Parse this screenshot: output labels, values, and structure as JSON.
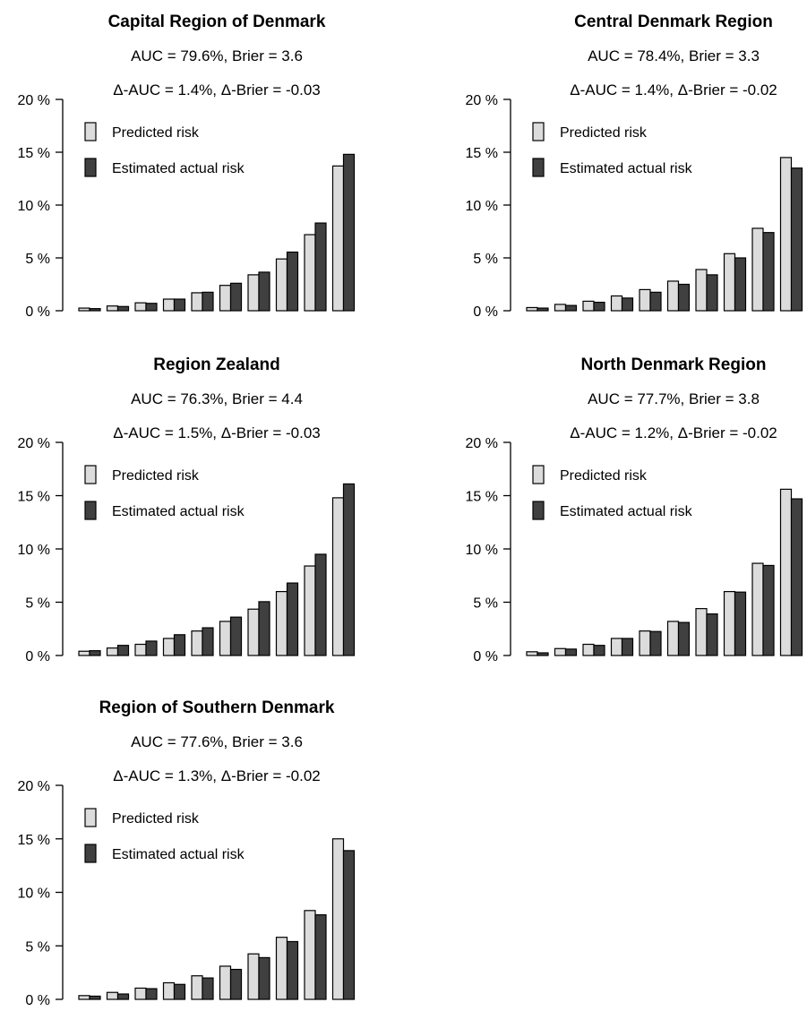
{
  "chart_data": [
    {
      "type": "bar",
      "title": "Capital Region of Denmark",
      "subtitle1": "AUC = 79.6%, Brier = 3.6",
      "subtitle2": "Δ-AUC = 1.4%, Δ-Brier = -0.03",
      "ylim": [
        0,
        20
      ],
      "yticks": [
        "0 %",
        "5 %",
        "10 %",
        "15 %",
        "20 %"
      ],
      "ytick_values": [
        0,
        5,
        10,
        15,
        20
      ],
      "legend_position": "top-left",
      "grid": false,
      "series": [
        {
          "name": "Predicted risk",
          "color": "#dcdcdc",
          "values": [
            0.25,
            0.45,
            0.75,
            1.1,
            1.7,
            2.4,
            3.4,
            4.9,
            7.2,
            13.7
          ]
        },
        {
          "name": "Estimated actual risk",
          "color": "#404040",
          "values": [
            0.2,
            0.4,
            0.7,
            1.1,
            1.75,
            2.6,
            3.65,
            5.55,
            8.3,
            14.8
          ]
        }
      ]
    },
    {
      "type": "bar",
      "title": "Central Denmark Region",
      "subtitle1": "AUC = 78.4%, Brier = 3.3",
      "subtitle2": "Δ-AUC = 1.4%, Δ-Brier = -0.02",
      "ylim": [
        0,
        20
      ],
      "yticks": [
        "0 %",
        "5 %",
        "10 %",
        "15 %",
        "20 %"
      ],
      "ytick_values": [
        0,
        5,
        10,
        15,
        20
      ],
      "legend_position": "top-left",
      "grid": false,
      "series": [
        {
          "name": "Predicted risk",
          "color": "#dcdcdc",
          "values": [
            0.3,
            0.6,
            0.9,
            1.4,
            2.0,
            2.8,
            3.9,
            5.4,
            7.8,
            14.5
          ]
        },
        {
          "name": "Estimated actual risk",
          "color": "#404040",
          "values": [
            0.25,
            0.5,
            0.8,
            1.2,
            1.75,
            2.5,
            3.4,
            5.0,
            7.4,
            13.5
          ]
        }
      ]
    },
    {
      "type": "bar",
      "title": "Region Zealand",
      "subtitle1": "AUC = 76.3%, Brier = 4.4",
      "subtitle2": "Δ-AUC = 1.5%, Δ-Brier = -0.03",
      "ylim": [
        0,
        20
      ],
      "yticks": [
        "0 %",
        "5 %",
        "10 %",
        "15 %",
        "20 %"
      ],
      "ytick_values": [
        0,
        5,
        10,
        15,
        20
      ],
      "legend_position": "top-left",
      "grid": false,
      "series": [
        {
          "name": "Predicted risk",
          "color": "#dcdcdc",
          "values": [
            0.4,
            0.7,
            1.05,
            1.6,
            2.3,
            3.2,
            4.35,
            6.0,
            8.4,
            14.8
          ]
        },
        {
          "name": "Estimated actual risk",
          "color": "#404040",
          "values": [
            0.45,
            0.95,
            1.35,
            1.95,
            2.6,
            3.6,
            5.05,
            6.8,
            9.5,
            16.1
          ]
        }
      ]
    },
    {
      "type": "bar",
      "title": "North Denmark Region",
      "subtitle1": "AUC = 77.7%, Brier = 3.8",
      "subtitle2": "Δ-AUC = 1.2%, Δ-Brier = -0.02",
      "ylim": [
        0,
        20
      ],
      "yticks": [
        "0 %",
        "5 %",
        "10 %",
        "15 %",
        "20 %"
      ],
      "ytick_values": [
        0,
        5,
        10,
        15,
        20
      ],
      "legend_position": "top-left",
      "grid": false,
      "series": [
        {
          "name": "Predicted risk",
          "color": "#dcdcdc",
          "values": [
            0.35,
            0.65,
            1.05,
            1.6,
            2.3,
            3.2,
            4.4,
            6.0,
            8.65,
            15.6
          ]
        },
        {
          "name": "Estimated actual risk",
          "color": "#404040",
          "values": [
            0.25,
            0.6,
            0.95,
            1.6,
            2.25,
            3.1,
            3.9,
            5.95,
            8.45,
            14.7
          ]
        }
      ]
    },
    {
      "type": "bar",
      "title": "Region of Southern Denmark",
      "subtitle1": "AUC = 77.6%, Brier = 3.6",
      "subtitle2": "Δ-AUC = 1.3%, Δ-Brier = -0.02",
      "ylim": [
        0,
        20
      ],
      "yticks": [
        "0 %",
        "5 %",
        "10 %",
        "15 %",
        "20 %"
      ],
      "ytick_values": [
        0,
        5,
        10,
        15,
        20
      ],
      "legend_position": "top-left",
      "grid": false,
      "series": [
        {
          "name": "Predicted risk",
          "color": "#dcdcdc",
          "values": [
            0.35,
            0.65,
            1.05,
            1.55,
            2.2,
            3.1,
            4.25,
            5.8,
            8.3,
            15.0
          ]
        },
        {
          "name": "Estimated actual risk",
          "color": "#404040",
          "values": [
            0.3,
            0.5,
            1.0,
            1.4,
            2.0,
            2.8,
            3.9,
            5.4,
            7.9,
            13.9
          ]
        }
      ]
    }
  ]
}
